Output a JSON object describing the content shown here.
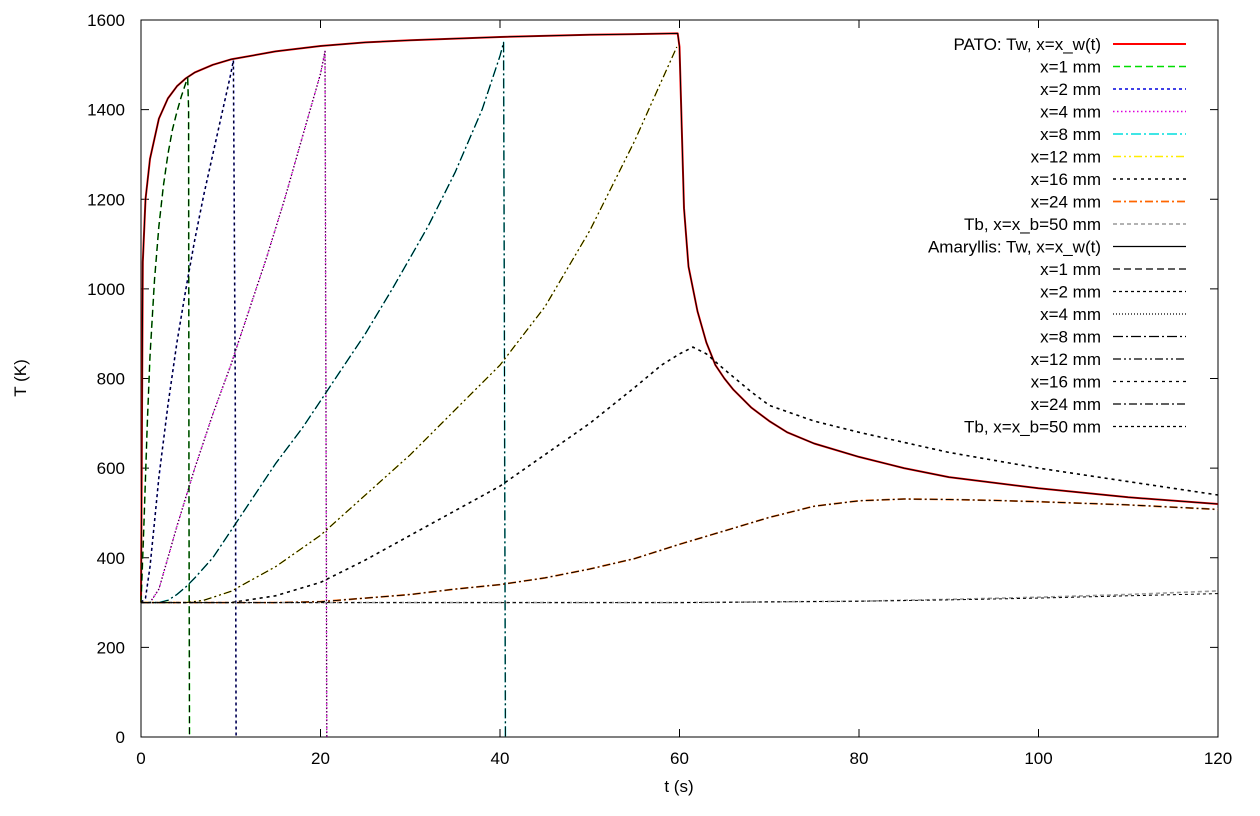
{
  "chart_data": {
    "type": "line",
    "title": "",
    "xlabel": "t (s)",
    "ylabel": "T (K)",
    "xlim": [
      0,
      120
    ],
    "ylim": [
      0,
      1600
    ],
    "xticks": [
      0,
      20,
      40,
      60,
      80,
      100,
      120
    ],
    "yticks": [
      0,
      200,
      400,
      600,
      800,
      1000,
      1200,
      1400,
      1600
    ],
    "grid": false,
    "legend_position": "top-right",
    "series": [
      {
        "name": "PATO: Tw, x=x_w(t)",
        "color": "#ff0000",
        "dash": "",
        "width": 2,
        "x": [
          0,
          0.2,
          0.5,
          1,
          2,
          3,
          4,
          5,
          6,
          8,
          10,
          15,
          20,
          25,
          30,
          40,
          50,
          59.8,
          60,
          60.5,
          61,
          62,
          63,
          64,
          65,
          66,
          68,
          70,
          72,
          75,
          80,
          85,
          90,
          100,
          110,
          120
        ],
        "y": [
          300,
          1060,
          1200,
          1290,
          1380,
          1425,
          1452,
          1470,
          1483,
          1500,
          1512,
          1530,
          1542,
          1550,
          1555,
          1562,
          1567,
          1570,
          1540,
          1180,
          1050,
          950,
          880,
          830,
          800,
          775,
          735,
          705,
          680,
          655,
          625,
          600,
          580,
          555,
          535,
          520
        ]
      },
      {
        "name": "x=1 mm",
        "color": "#00dd00",
        "dash": "7,4",
        "width": 1.6,
        "x": [
          0,
          0.3,
          0.7,
          1,
          1.5,
          2,
          2.5,
          3,
          3.5,
          4,
          4.5,
          5,
          5.2,
          5.3,
          5.35,
          5.4
        ],
        "y": [
          300,
          460,
          700,
          850,
          1020,
          1140,
          1230,
          1300,
          1355,
          1395,
          1430,
          1460,
          1470,
          1400,
          500,
          0
        ]
      },
      {
        "name": "x=2 mm",
        "color": "#0000dd",
        "dash": "3,3",
        "width": 1.6,
        "x": [
          0,
          0.5,
          1,
          1.5,
          2,
          3,
          4,
          5,
          6,
          7,
          8,
          9,
          10,
          10.3,
          10.5,
          10.6
        ],
        "y": [
          300,
          310,
          380,
          480,
          580,
          740,
          880,
          1000,
          1110,
          1210,
          1300,
          1390,
          1480,
          1510,
          800,
          0
        ]
      },
      {
        "name": "x=4 mm",
        "color": "#dd00dd",
        "dash": "1.5,2.5",
        "width": 1.6,
        "x": [
          0,
          1,
          2,
          3,
          4,
          6,
          8,
          10,
          12,
          14,
          16,
          18,
          20,
          20.5,
          20.6,
          20.7
        ],
        "y": [
          300,
          300,
          330,
          400,
          470,
          600,
          720,
          830,
          950,
          1070,
          1200,
          1340,
          1480,
          1530,
          800,
          0
        ]
      },
      {
        "name": "x=8 mm",
        "color": "#00dddd",
        "dash": "10,3,2,3",
        "width": 1.6,
        "x": [
          0,
          2,
          3,
          4,
          5,
          6,
          8,
          10,
          12,
          15,
          18,
          20,
          22,
          25,
          28,
          30,
          32,
          35,
          38,
          40,
          40.4,
          40.5,
          40.6
        ],
        "y": [
          300,
          300,
          305,
          318,
          335,
          355,
          400,
          460,
          520,
          610,
          690,
          750,
          810,
          900,
          1000,
          1070,
          1140,
          1260,
          1400,
          1520,
          1550,
          800,
          0
        ]
      },
      {
        "name": "x=12 mm",
        "color": "#ffee00",
        "dash": "8,3,2,3,2,3",
        "width": 1.6,
        "x": [
          0,
          5,
          7,
          10,
          15,
          20,
          25,
          30,
          35,
          40,
          45,
          50,
          55,
          59.7
        ],
        "y": [
          300,
          300,
          305,
          325,
          380,
          450,
          540,
          630,
          730,
          830,
          960,
          1130,
          1330,
          1540
        ]
      },
      {
        "name": "x=16 mm",
        "color": "#000000",
        "dash": "3,4",
        "width": 1.6,
        "x": [
          0,
          10,
          15,
          20,
          25,
          30,
          35,
          40,
          45,
          50,
          55,
          58,
          60,
          61.5,
          63,
          65,
          68,
          70,
          75,
          80,
          90,
          100,
          110,
          120
        ],
        "y": [
          300,
          300,
          315,
          345,
          395,
          450,
          505,
          560,
          630,
          700,
          780,
          830,
          855,
          870,
          855,
          820,
          770,
          740,
          705,
          680,
          635,
          600,
          570,
          540
        ]
      },
      {
        "name": "x=24 mm",
        "color": "#ff6600",
        "dash": "8,3,2,3",
        "width": 1.8,
        "x": [
          0,
          15,
          20,
          25,
          30,
          35,
          40,
          45,
          50,
          55,
          60,
          65,
          70,
          75,
          80,
          85,
          90,
          95,
          100,
          110,
          120
        ],
        "y": [
          300,
          300,
          302,
          310,
          318,
          330,
          340,
          355,
          375,
          398,
          430,
          460,
          490,
          515,
          527,
          531,
          530,
          528,
          525,
          518,
          508
        ]
      },
      {
        "name": "Tb, x=x_b=50 mm",
        "color": "#999999",
        "dash": "4,3",
        "width": 1.6,
        "x": [
          0,
          60,
          80,
          90,
          100,
          110,
          120
        ],
        "y": [
          300,
          300,
          303,
          307,
          312,
          318,
          326
        ]
      },
      {
        "name": "Amaryllis: Tw, x=x_w(t)",
        "color": "#000000",
        "dash": "",
        "width": 1,
        "x": [
          0,
          0.2,
          0.5,
          1,
          2,
          3,
          4,
          5,
          6,
          8,
          10,
          15,
          20,
          25,
          30,
          40,
          50,
          59.8,
          60,
          60.5,
          61,
          62,
          63,
          64,
          65,
          66,
          68,
          70,
          72,
          75,
          80,
          85,
          90,
          100,
          110,
          120
        ],
        "y": [
          300,
          1060,
          1200,
          1290,
          1380,
          1425,
          1452,
          1470,
          1483,
          1500,
          1512,
          1530,
          1542,
          1550,
          1555,
          1562,
          1567,
          1570,
          1540,
          1180,
          1050,
          950,
          880,
          830,
          800,
          775,
          735,
          705,
          680,
          655,
          625,
          600,
          580,
          555,
          535,
          520
        ]
      },
      {
        "name": "x=1 mm",
        "color": "#000000",
        "dash": "7,4",
        "width": 1,
        "x": [
          0,
          0.3,
          0.7,
          1,
          1.5,
          2,
          2.5,
          3,
          3.5,
          4,
          4.5,
          5,
          5.2,
          5.3,
          5.35,
          5.4
        ],
        "y": [
          300,
          460,
          700,
          850,
          1020,
          1140,
          1230,
          1300,
          1355,
          1395,
          1430,
          1460,
          1470,
          1400,
          500,
          0
        ]
      },
      {
        "name": "x=2 mm",
        "color": "#000000",
        "dash": "3,3",
        "width": 1,
        "x": [
          0,
          0.5,
          1,
          1.5,
          2,
          3,
          4,
          5,
          6,
          7,
          8,
          9,
          10,
          10.3,
          10.5,
          10.6
        ],
        "y": [
          300,
          310,
          380,
          480,
          580,
          740,
          880,
          1000,
          1110,
          1210,
          1300,
          1390,
          1480,
          1510,
          800,
          0
        ]
      },
      {
        "name": "x=4 mm",
        "color": "#000000",
        "dash": "1,2",
        "width": 1,
        "x": [
          0,
          1,
          2,
          3,
          4,
          6,
          8,
          10,
          12,
          14,
          16,
          18,
          20,
          20.5,
          20.6,
          20.7
        ],
        "y": [
          300,
          300,
          330,
          400,
          470,
          600,
          720,
          830,
          950,
          1070,
          1200,
          1340,
          1480,
          1530,
          800,
          0
        ]
      },
      {
        "name": "x=8 mm",
        "color": "#000000",
        "dash": "10,3,2,3",
        "width": 1,
        "x": [
          0,
          2,
          3,
          4,
          5,
          6,
          8,
          10,
          12,
          15,
          18,
          20,
          22,
          25,
          28,
          30,
          32,
          35,
          38,
          40,
          40.4,
          40.5,
          40.6
        ],
        "y": [
          300,
          300,
          305,
          318,
          335,
          355,
          400,
          460,
          520,
          610,
          690,
          750,
          810,
          900,
          1000,
          1070,
          1140,
          1260,
          1400,
          1520,
          1550,
          800,
          0
        ]
      },
      {
        "name": "x=12 mm",
        "color": "#000000",
        "dash": "8,3,2,3,2,3",
        "width": 1,
        "x": [
          0,
          5,
          7,
          10,
          15,
          20,
          25,
          30,
          35,
          40,
          45,
          50,
          55,
          59.7
        ],
        "y": [
          300,
          300,
          305,
          325,
          380,
          450,
          540,
          630,
          730,
          830,
          960,
          1130,
          1330,
          1540
        ]
      },
      {
        "name": "x=16 mm",
        "color": "#000000",
        "dash": "3,4",
        "width": 1,
        "x": [
          0,
          10,
          15,
          20,
          25,
          30,
          35,
          40,
          45,
          50,
          55,
          58,
          60,
          61.5,
          63,
          65,
          68,
          70,
          75,
          80,
          90,
          100,
          110,
          120
        ],
        "y": [
          300,
          300,
          315,
          345,
          395,
          450,
          505,
          560,
          630,
          700,
          780,
          830,
          855,
          870,
          855,
          820,
          770,
          740,
          705,
          680,
          635,
          600,
          570,
          540
        ]
      },
      {
        "name": "x=24 mm",
        "color": "#000000",
        "dash": "8,3,2,3",
        "width": 1,
        "x": [
          0,
          15,
          20,
          25,
          30,
          35,
          40,
          45,
          50,
          55,
          60,
          65,
          70,
          75,
          80,
          85,
          90,
          95,
          100,
          110,
          120
        ],
        "y": [
          300,
          300,
          302,
          310,
          318,
          330,
          340,
          355,
          375,
          398,
          430,
          460,
          490,
          515,
          527,
          531,
          530,
          528,
          525,
          518,
          508
        ]
      },
      {
        "name": "Tb, x=x_b=50 mm",
        "color": "#000000",
        "dash": "3,3",
        "width": 1,
        "x": [
          0,
          60,
          80,
          90,
          100,
          110,
          120
        ],
        "y": [
          300,
          300,
          303,
          306,
          310,
          315,
          320
        ]
      }
    ]
  }
}
